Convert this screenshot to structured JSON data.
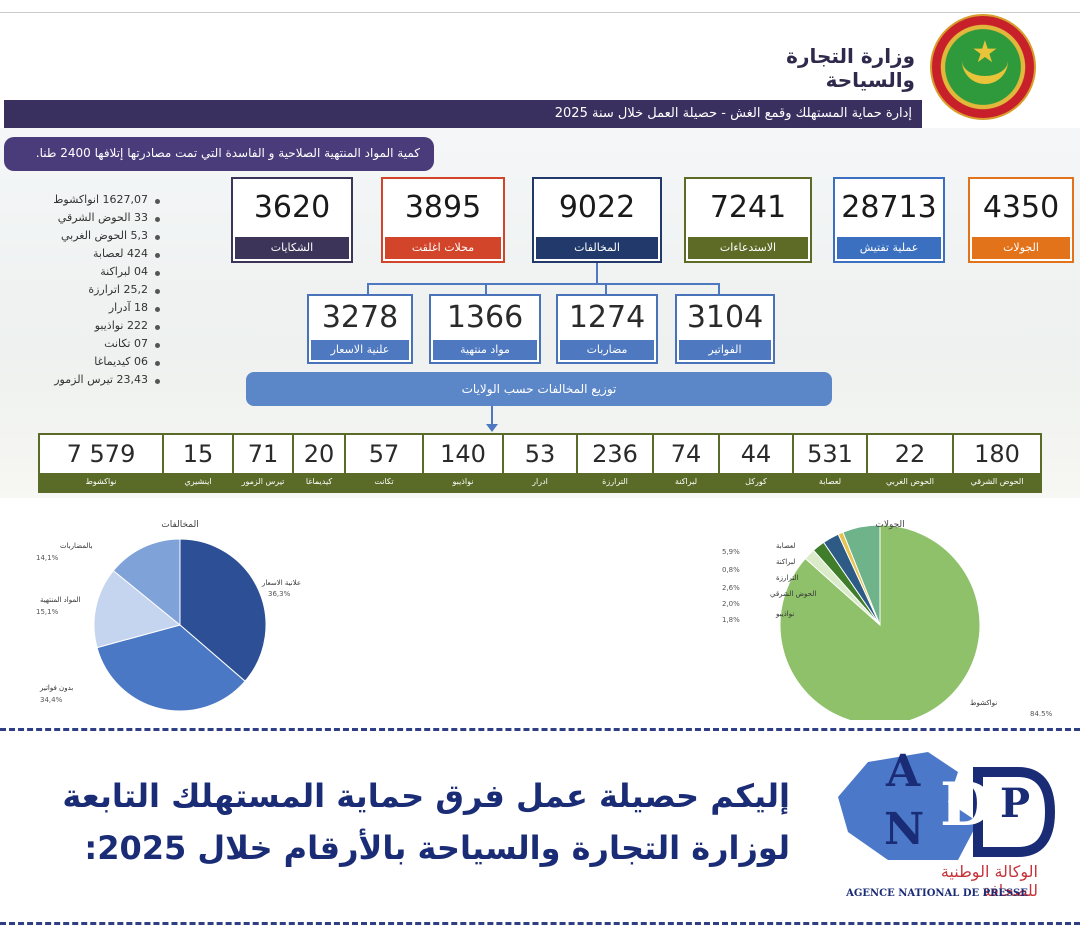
{
  "header": {
    "ministry": "وزارة التجارة والسياحة",
    "band_left": "إدارة حماية المستهلك وقمع الغش  -  حصيلة العمل خلال سنة 2025",
    "subtitle": "كمية المواد المنتهية الصلاحية و الفاسدة التي تمت مصادرتها إتلافها 2400 طنا."
  },
  "top_stats": [
    {
      "value": "4350",
      "label": "الجولات",
      "color": "#e2731b"
    },
    {
      "value": "28713",
      "label": "عملية تفتيش",
      "color": "#3b6fbf"
    },
    {
      "value": "7241",
      "label": "الاستدعاءات",
      "color": "#5d6b27"
    },
    {
      "value": "9022",
      "label": "المخالفات",
      "color": "#213a6b"
    },
    {
      "value": "3895",
      "label": "محلات اغلقت",
      "color": "#d2452a"
    },
    {
      "value": "3620",
      "label": "الشكايات",
      "color": "#3d3559"
    }
  ],
  "sub_stats": [
    {
      "value": "3104",
      "label": "الفواتير"
    },
    {
      "value": "1274",
      "label": "مضاربات"
    },
    {
      "value": "1366",
      "label": "مواد منتهية"
    },
    {
      "value": "3278",
      "label": "علنية الاسعار"
    }
  ],
  "bullets": [
    "1627,07 انواكشوط",
    "33 الحوض الشرقي",
    "5,3 الحوض الغربي",
    "424 لعصابة",
    "04 لبراكنة",
    "25,2 اترارزة",
    "18 آدرار",
    "222 نواذيبو",
    "07 تكانت",
    "06 كيديماغا",
    "23,43 تيرس الزمور"
  ],
  "distribution_title": "توزيع المخالفات حسب الولايات",
  "wilayas": [
    {
      "value": "180",
      "label": "الحوض الشرقي"
    },
    {
      "value": "22",
      "label": "الحوض الغربي"
    },
    {
      "value": "531",
      "label": "لعصابة"
    },
    {
      "value": "44",
      "label": "كوركل"
    },
    {
      "value": "74",
      "label": "لبراكنة"
    },
    {
      "value": "236",
      "label": "الترارزة"
    },
    {
      "value": "53",
      "label": "ادرار"
    },
    {
      "value": "140",
      "label": "نواذيبو"
    },
    {
      "value": "57",
      "label": "تكانت"
    },
    {
      "value": "20",
      "label": "كيديماغا"
    },
    {
      "value": "71",
      "label": "تيرس الزمور"
    },
    {
      "value": "15",
      "label": "اينشيري"
    },
    {
      "value": "7 579",
      "label": "نواكشوط"
    }
  ],
  "chart_data": [
    {
      "type": "pie",
      "title": "المخالفات",
      "slices": [
        {
          "label": "علانية الاسعار",
          "value": 36.3,
          "pct_text": "36,3%",
          "color": "#2c4f96"
        },
        {
          "label": "بدون فواتير",
          "value": 34.4,
          "pct_text": "34,4%",
          "color": "#4a78c4"
        },
        {
          "label": "المواد المنتهية",
          "value": 15.1,
          "pct_text": "15,1%",
          "color": "#c5d4ef"
        },
        {
          "label": "بالمضاربات",
          "value": 14.1,
          "pct_text": "14,1%",
          "color": "#7fa2d8"
        }
      ]
    },
    {
      "type": "pie",
      "title": "الجولات",
      "slices": [
        {
          "label": "نواكشوط",
          "value": 84.5,
          "pct_text": "84.5%",
          "color": "#8fc06a"
        },
        {
          "label": "نواذيبو",
          "value": 1.8,
          "pct_text": "1,8%",
          "color": "#d9ebc9"
        },
        {
          "label": "الحوض الشرقي",
          "value": 2.0,
          "pct_text": "2,0%",
          "color": "#3f7d2a"
        },
        {
          "label": "الترارزة",
          "value": 2.6,
          "pct_text": "2,6%",
          "color": "#2d5b86"
        },
        {
          "label": "لبراكنة",
          "value": 0.8,
          "pct_text": "0,8%",
          "color": "#e5c451"
        },
        {
          "label": "لعصابة",
          "value": 5.9,
          "pct_text": "5,9%",
          "color": "#6fb38a"
        }
      ]
    }
  ],
  "caption": {
    "line1": "إليكم حصيلة عمل فرق حماية المستهلك التابعة",
    "line2": "لوزارة التجارة والسياحة بالأرقام خلال 2025:"
  },
  "logo": {
    "letters": [
      "A",
      "N",
      "D",
      "P"
    ],
    "arabic": "الوكالة الوطنية للصحافة",
    "french": "AGENCE NATIONAL DE PRESSE"
  }
}
